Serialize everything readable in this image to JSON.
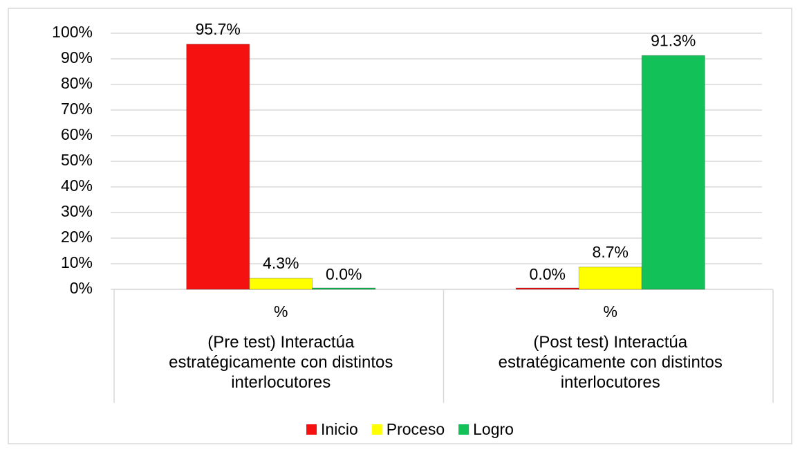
{
  "chart_data": {
    "type": "bar",
    "categories": [
      "%",
      "%"
    ],
    "groups": [
      "(Pre test) Interactúa estratégicamente con distintos interlocutores",
      "(Post test) Interactúa estratégicamente con distintos interlocutores"
    ],
    "series": [
      {
        "name": "Inicio",
        "color": "#f5110f",
        "values": [
          95.7,
          0.0
        ],
        "value_labels": [
          "95.7%",
          "0.0%"
        ]
      },
      {
        "name": "Proceso",
        "color": "#ffff00",
        "values": [
          4.3,
          8.7
        ],
        "value_labels": [
          "4.3%",
          "8.7%"
        ]
      },
      {
        "name": "Logro",
        "color": "#12c157",
        "values": [
          0.0,
          91.3
        ],
        "value_labels": [
          "0.0%",
          "91.3%"
        ]
      }
    ],
    "ylim": [
      0,
      100
    ],
    "yticks": [
      {
        "value": 0,
        "label": "0%"
      },
      {
        "value": 10,
        "label": "10%"
      },
      {
        "value": 20,
        "label": "20%"
      },
      {
        "value": 30,
        "label": "30%"
      },
      {
        "value": 40,
        "label": "40%"
      },
      {
        "value": 50,
        "label": "50%"
      },
      {
        "value": 60,
        "label": "60%"
      },
      {
        "value": 70,
        "label": "70%"
      },
      {
        "value": 80,
        "label": "80%"
      },
      {
        "value": 90,
        "label": "90%"
      },
      {
        "value": 100,
        "label": "100%"
      }
    ],
    "grid": true,
    "legend": "bottom"
  }
}
